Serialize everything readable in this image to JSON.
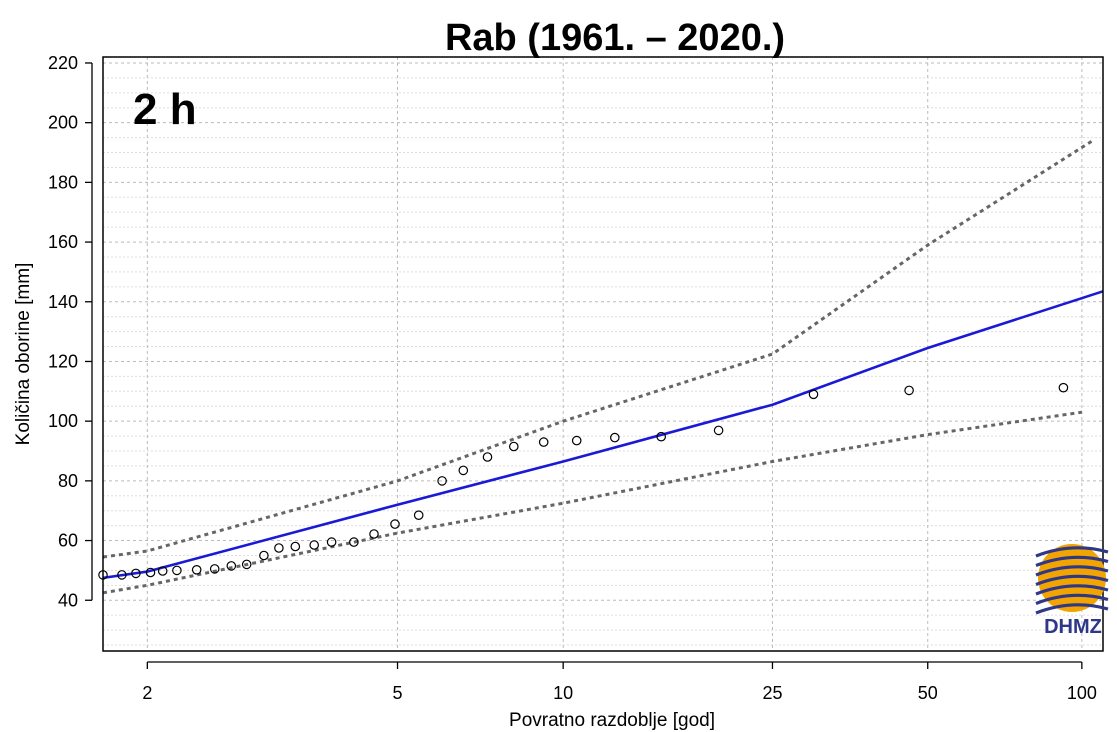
{
  "chart_data": {
    "type": "line",
    "title": "Rab (1961. – 2020.)",
    "panel_label": "2 h",
    "xlabel": "Povratno razdoblje [god]",
    "ylabel": "Količina oborine [mm]",
    "x_scale": "gumbel (reduced variate of return period)",
    "xlim": [
      1.75,
      110
    ],
    "ylim": [
      23,
      222
    ],
    "x_ticks": [
      2,
      5,
      10,
      25,
      50,
      100
    ],
    "x_tick_labels": [
      "2",
      "5",
      "10",
      "25",
      "50",
      "100"
    ],
    "y_ticks": [
      40,
      60,
      80,
      100,
      120,
      140,
      160,
      180,
      200,
      220
    ],
    "y_tick_labels": [
      "40",
      "60",
      "80",
      "100",
      "120",
      "140",
      "160",
      "180",
      "200",
      "220"
    ],
    "grid": true,
    "series": [
      {
        "kind": "fit",
        "style": "solid",
        "color": "#1a1ad6",
        "points": [
          [
            1.75,
            47.5
          ],
          [
            2,
            49.6
          ],
          [
            5,
            72
          ],
          [
            10,
            86.5
          ],
          [
            25,
            105.5
          ],
          [
            50,
            124.5
          ],
          [
            110,
            143.5
          ]
        ]
      },
      {
        "kind": "upper-bound",
        "style": "dotted",
        "color": "#666666",
        "points": [
          [
            1.75,
            54.5
          ],
          [
            2,
            56.5
          ],
          [
            5,
            80
          ],
          [
            10,
            100
          ],
          [
            25,
            122.5
          ],
          [
            50,
            159
          ],
          [
            105,
            194
          ]
        ]
      },
      {
        "kind": "lower-bound",
        "style": "dotted",
        "color": "#666666",
        "points": [
          [
            1.75,
            42.5
          ],
          [
            2,
            45
          ],
          [
            5,
            62.5
          ],
          [
            10,
            72.5
          ],
          [
            25,
            86.5
          ],
          [
            50,
            95.5
          ],
          [
            100,
            103
          ]
        ]
      },
      {
        "kind": "observed",
        "style": "open-circles",
        "color": "#000000",
        "points": [
          [
            1.75,
            48.5
          ],
          [
            1.85,
            48.5
          ],
          [
            1.93,
            49
          ],
          [
            2.02,
            49.3
          ],
          [
            2.1,
            49.8
          ],
          [
            2.2,
            50
          ],
          [
            2.35,
            50.2
          ],
          [
            2.5,
            50.5
          ],
          [
            2.65,
            51.5
          ],
          [
            2.8,
            52
          ],
          [
            2.98,
            55
          ],
          [
            3.15,
            57.5
          ],
          [
            3.35,
            58
          ],
          [
            3.6,
            58.5
          ],
          [
            3.85,
            59.5
          ],
          [
            4.2,
            59.5
          ],
          [
            4.55,
            62.2
          ],
          [
            4.95,
            65.5
          ],
          [
            5.45,
            68.5
          ],
          [
            6.0,
            80
          ],
          [
            6.55,
            83.5
          ],
          [
            7.25,
            88
          ],
          [
            8.1,
            91.5
          ],
          [
            9.2,
            93
          ],
          [
            10.6,
            93.5
          ],
          [
            12.5,
            94.5
          ],
          [
            15.3,
            94.8
          ],
          [
            19.7,
            96.9
          ],
          [
            30,
            109
          ],
          [
            46,
            110.3
          ],
          [
            92,
            111.2
          ]
        ]
      }
    ]
  },
  "logo": {
    "text": "DHMZ",
    "colors": [
      "#f2a400",
      "#2e3788"
    ]
  }
}
